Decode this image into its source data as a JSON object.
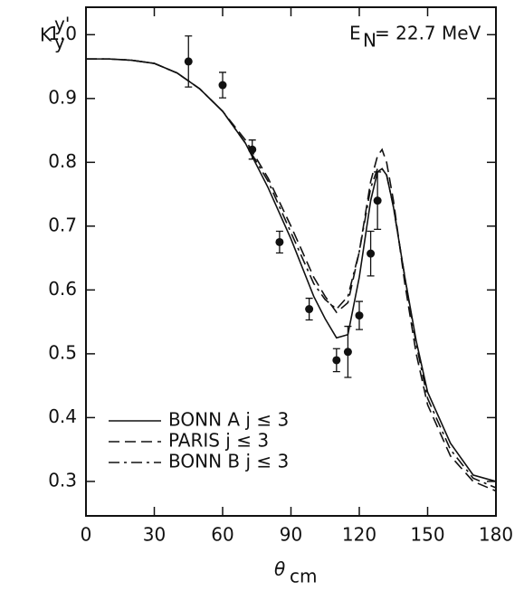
{
  "chart_data": {
    "type": "line",
    "annotation": {
      "text": "E",
      "sub": "N",
      "rest": "= 22.7 MeV"
    },
    "y_label": {
      "text": "K",
      "sub": "y",
      "sup": "y'"
    },
    "x_label": {
      "text": "θ",
      "sub": "cm"
    },
    "xlim": [
      0,
      180
    ],
    "xticks": [
      0,
      30,
      60,
      90,
      120,
      150,
      180
    ],
    "ylim": [
      0.246,
      1.043
    ],
    "yticks": [
      0.3,
      0.4,
      0.5,
      0.6,
      0.7,
      0.8,
      0.9,
      {
        "value": 1,
        "label": "1.0"
      }
    ],
    "x": [
      0,
      10,
      20,
      30,
      40,
      50,
      60,
      70,
      80,
      90,
      100,
      105,
      110,
      115,
      120,
      125,
      128,
      130,
      132,
      135,
      140,
      145,
      150,
      160,
      170,
      180
    ],
    "series": [
      {
        "name": "BONN A j ≤ 3",
        "style": "solid",
        "color": "#111111",
        "values": [
          0.962,
          0.962,
          0.96,
          0.955,
          0.94,
          0.915,
          0.88,
          0.83,
          0.76,
          0.68,
          0.59,
          0.555,
          0.525,
          0.53,
          0.62,
          0.74,
          0.785,
          0.79,
          0.78,
          0.73,
          0.62,
          0.52,
          0.44,
          0.36,
          0.31,
          0.3
        ]
      },
      {
        "name": "PARIS j ≤ 3",
        "style": "dashed",
        "color": "#111111",
        "values": [
          0.962,
          0.962,
          0.96,
          0.955,
          0.94,
          0.915,
          0.88,
          0.835,
          0.775,
          0.7,
          0.62,
          0.59,
          0.565,
          0.58,
          0.66,
          0.77,
          0.81,
          0.82,
          0.8,
          0.74,
          0.61,
          0.5,
          0.42,
          0.34,
          0.3,
          0.285
        ]
      },
      {
        "name": "BONN B j ≤ 3",
        "style": "dashdot",
        "color": "#111111",
        "values": [
          0.962,
          0.962,
          0.96,
          0.955,
          0.94,
          0.915,
          0.88,
          0.83,
          0.77,
          0.69,
          0.61,
          0.585,
          0.57,
          0.59,
          0.66,
          0.76,
          0.79,
          0.79,
          0.78,
          0.73,
          0.62,
          0.515,
          0.43,
          0.35,
          0.305,
          0.29
        ]
      }
    ],
    "points": {
      "x": [
        45,
        60,
        73,
        85,
        98,
        110,
        115,
        120,
        125,
        128
      ],
      "values": [
        0.958,
        0.921,
        0.82,
        0.675,
        0.57,
        0.49,
        0.503,
        0.56,
        0.657,
        0.74
      ],
      "errors": [
        0.04,
        0.02,
        0.015,
        0.017,
        0.017,
        0.018,
        0.04,
        0.022,
        0.035,
        0.045
      ]
    }
  }
}
